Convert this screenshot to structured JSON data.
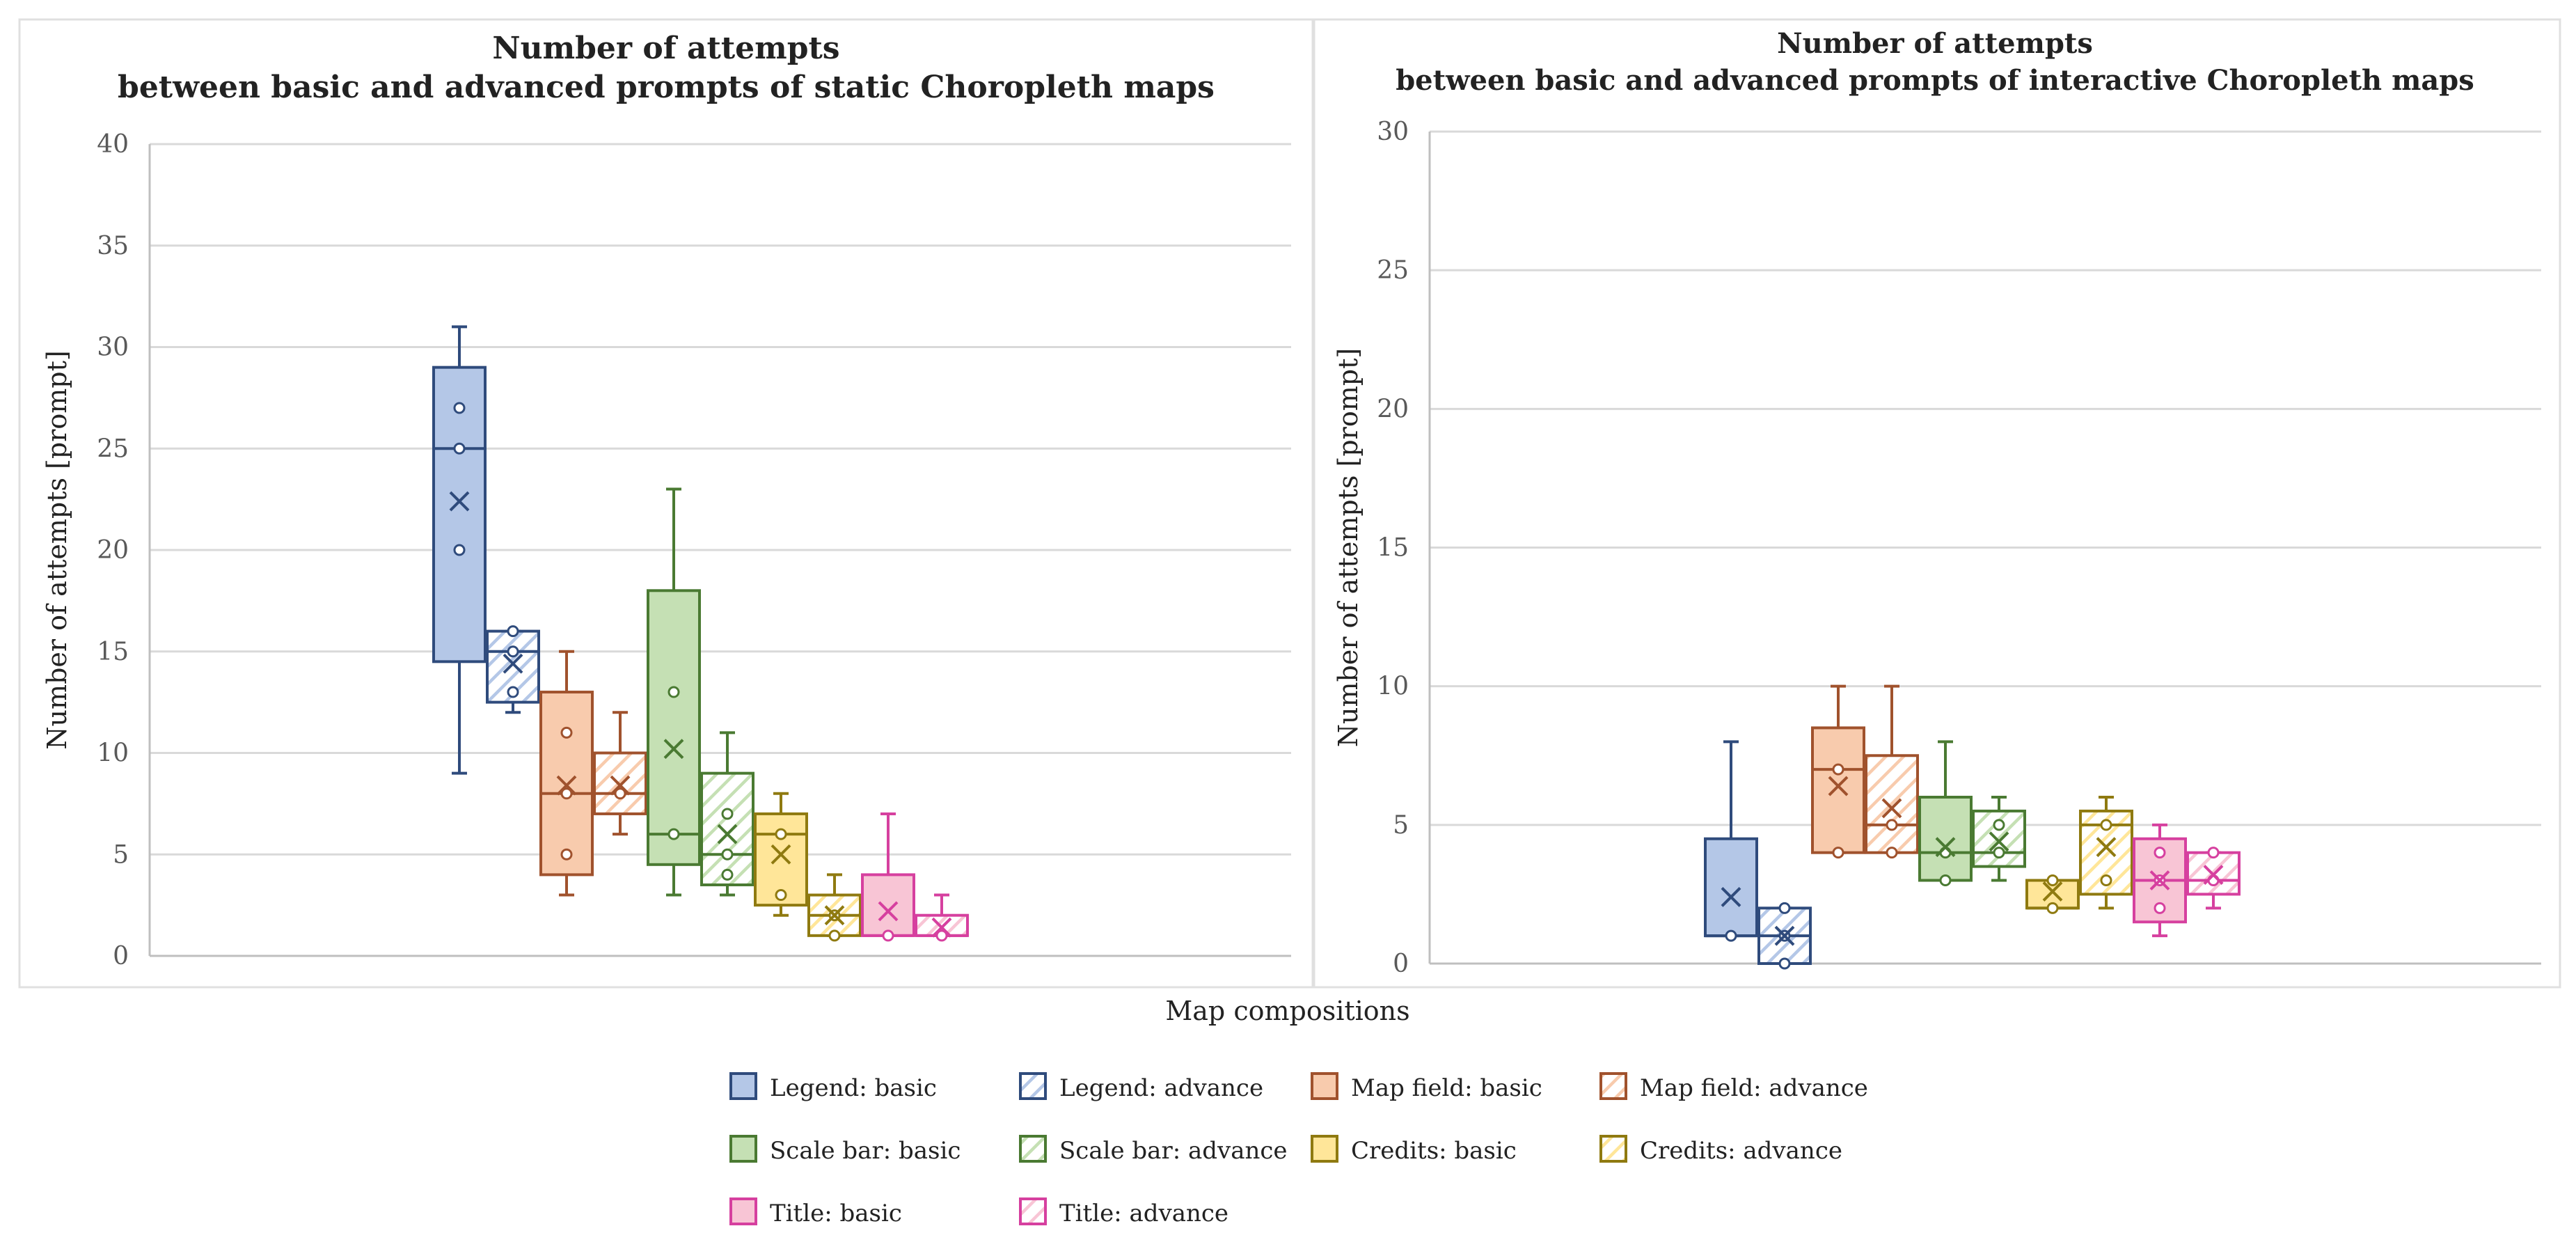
{
  "xlabel": "Map compositions",
  "legend": {
    "placement": "bottom",
    "items": [
      {
        "label": "Legend: basic",
        "series": "legend_basic"
      },
      {
        "label": "Legend: advance",
        "series": "legend_advance"
      },
      {
        "label": "Map field: basic",
        "series": "mapfield_basic"
      },
      {
        "label": "Map field: advance",
        "series": "mapfield_advance"
      },
      {
        "label": "Scale bar: basic",
        "series": "scalebar_basic"
      },
      {
        "label": "Scale bar: advance",
        "series": "scalebar_advance"
      },
      {
        "label": "Credits: basic",
        "series": "credits_basic"
      },
      {
        "label": "Credits: advance",
        "series": "credits_advance"
      },
      {
        "label": "Title: basic",
        "series": "title_basic"
      },
      {
        "label": "Title: advance",
        "series": "title_advance"
      }
    ]
  },
  "series_styles": {
    "legend_basic": {
      "stroke": "#2f4b7c",
      "fill": "#b4c7e7",
      "hatched": false
    },
    "legend_advance": {
      "stroke": "#2f4b7c",
      "fill": "#b4c7e7",
      "hatched": true
    },
    "mapfield_basic": {
      "stroke": "#a0522d",
      "fill": "#f8cbad",
      "hatched": false
    },
    "mapfield_advance": {
      "stroke": "#a0522d",
      "fill": "#f8cbad",
      "hatched": true
    },
    "scalebar_basic": {
      "stroke": "#4a7a32",
      "fill": "#c5e0b4",
      "hatched": false
    },
    "scalebar_advance": {
      "stroke": "#4a7a32",
      "fill": "#c5e0b4",
      "hatched": true
    },
    "credits_basic": {
      "stroke": "#8f7a10",
      "fill": "#ffe699",
      "hatched": false
    },
    "credits_advance": {
      "stroke": "#8f7a10",
      "fill": "#ffe699",
      "hatched": true
    },
    "title_basic": {
      "stroke": "#d6409f",
      "fill": "#f8c5d5",
      "hatched": false
    },
    "title_advance": {
      "stroke": "#d6409f",
      "fill": "#f8c5d5",
      "hatched": true
    }
  },
  "chart_data": [
    {
      "type": "box",
      "title_lines": [
        "Number of attempts",
        "between basic and advanced prompts of static Choropleth maps"
      ],
      "xlabel": "",
      "ylabel": "Number of attempts [prompt]",
      "ylim": [
        0,
        40
      ],
      "yticks": [
        0,
        5,
        10,
        15,
        20,
        25,
        30,
        35,
        40
      ],
      "grid": true,
      "series": [
        {
          "key": "legend_basic",
          "min": 9,
          "q1": 14.5,
          "median": 25,
          "q3": 29,
          "max": 31,
          "mean": 22.4,
          "points": [
            20,
            25,
            27
          ]
        },
        {
          "key": "legend_advance",
          "min": 12,
          "q1": 12.5,
          "median": 15,
          "q3": 16,
          "max": 16,
          "mean": 14.4,
          "points": [
            13,
            15,
            16
          ]
        },
        {
          "key": "mapfield_basic",
          "min": 3,
          "q1": 4,
          "median": 8,
          "q3": 13,
          "max": 15,
          "mean": 8.4,
          "points": [
            5,
            8,
            11
          ]
        },
        {
          "key": "mapfield_advance",
          "min": 6,
          "q1": 7,
          "median": 8,
          "q3": 10,
          "max": 12,
          "mean": 8.4,
          "points": [
            8
          ]
        },
        {
          "key": "scalebar_basic",
          "min": 3,
          "q1": 4.5,
          "median": 6,
          "q3": 18,
          "max": 23,
          "mean": 10.2,
          "points": [
            6,
            13
          ]
        },
        {
          "key": "scalebar_advance",
          "min": 3,
          "q1": 3.5,
          "median": 5,
          "q3": 9,
          "max": 11,
          "mean": 6.0,
          "points": [
            4,
            5,
            7
          ]
        },
        {
          "key": "credits_basic",
          "min": 2,
          "q1": 2.5,
          "median": 6,
          "q3": 7,
          "max": 8,
          "mean": 5.0,
          "points": [
            3,
            6
          ]
        },
        {
          "key": "credits_advance",
          "min": 1,
          "q1": 1,
          "median": 2,
          "q3": 3,
          "max": 4,
          "mean": 2.0,
          "points": [
            1,
            2
          ]
        },
        {
          "key": "title_basic",
          "min": 1,
          "q1": 1,
          "median": 1,
          "q3": 4,
          "max": 7,
          "mean": 2.2,
          "points": [
            1
          ]
        },
        {
          "key": "title_advance",
          "min": 1,
          "q1": 1,
          "median": 1,
          "q3": 2,
          "max": 3,
          "mean": 1.4,
          "points": [
            1
          ]
        }
      ]
    },
    {
      "type": "box",
      "title_lines": [
        "Number of attempts",
        "between basic and advanced prompts of interactive Choropleth maps"
      ],
      "xlabel": "",
      "ylabel": "Number of attempts [prompt]",
      "ylim": [
        0,
        30
      ],
      "yticks": [
        0,
        5,
        10,
        15,
        20,
        25,
        30
      ],
      "grid": true,
      "series": [
        {
          "key": "legend_basic",
          "min": 1,
          "q1": 1,
          "median": 1,
          "q3": 4.5,
          "max": 8,
          "mean": 2.4,
          "points": [
            1
          ]
        },
        {
          "key": "legend_advance",
          "min": 0,
          "q1": 0,
          "median": 1,
          "q3": 2,
          "max": 2,
          "mean": 1.0,
          "points": [
            0,
            1,
            2
          ]
        },
        {
          "key": "mapfield_basic",
          "min": 4,
          "q1": 4,
          "median": 7,
          "q3": 8.5,
          "max": 10,
          "mean": 6.4,
          "points": [
            4,
            7
          ]
        },
        {
          "key": "mapfield_advance",
          "min": 4,
          "q1": 4,
          "median": 5,
          "q3": 7.5,
          "max": 10,
          "mean": 5.6,
          "points": [
            4,
            5
          ]
        },
        {
          "key": "scalebar_basic",
          "min": 3,
          "q1": 3,
          "median": 4,
          "q3": 6,
          "max": 8,
          "mean": 4.2,
          "points": [
            3,
            4
          ]
        },
        {
          "key": "scalebar_advance",
          "min": 3,
          "q1": 3.5,
          "median": 4,
          "q3": 5.5,
          "max": 6,
          "mean": 4.4,
          "points": [
            4,
            5
          ]
        },
        {
          "key": "credits_basic",
          "min": 2,
          "q1": 2,
          "median": 2,
          "q3": 3,
          "max": 3,
          "mean": 2.6,
          "points": [
            2,
            3
          ]
        },
        {
          "key": "credits_advance",
          "min": 2,
          "q1": 2.5,
          "median": 5,
          "q3": 5.5,
          "max": 6,
          "mean": 4.2,
          "points": [
            3,
            5
          ]
        },
        {
          "key": "title_basic",
          "min": 1,
          "q1": 1.5,
          "median": 3,
          "q3": 4.5,
          "max": 5,
          "mean": 3.0,
          "points": [
            2,
            3,
            4
          ]
        },
        {
          "key": "title_advance",
          "min": 2,
          "q1": 2.5,
          "median": 3,
          "q3": 4,
          "max": 4,
          "mean": 3.2,
          "points": [
            3,
            4
          ]
        }
      ]
    }
  ]
}
